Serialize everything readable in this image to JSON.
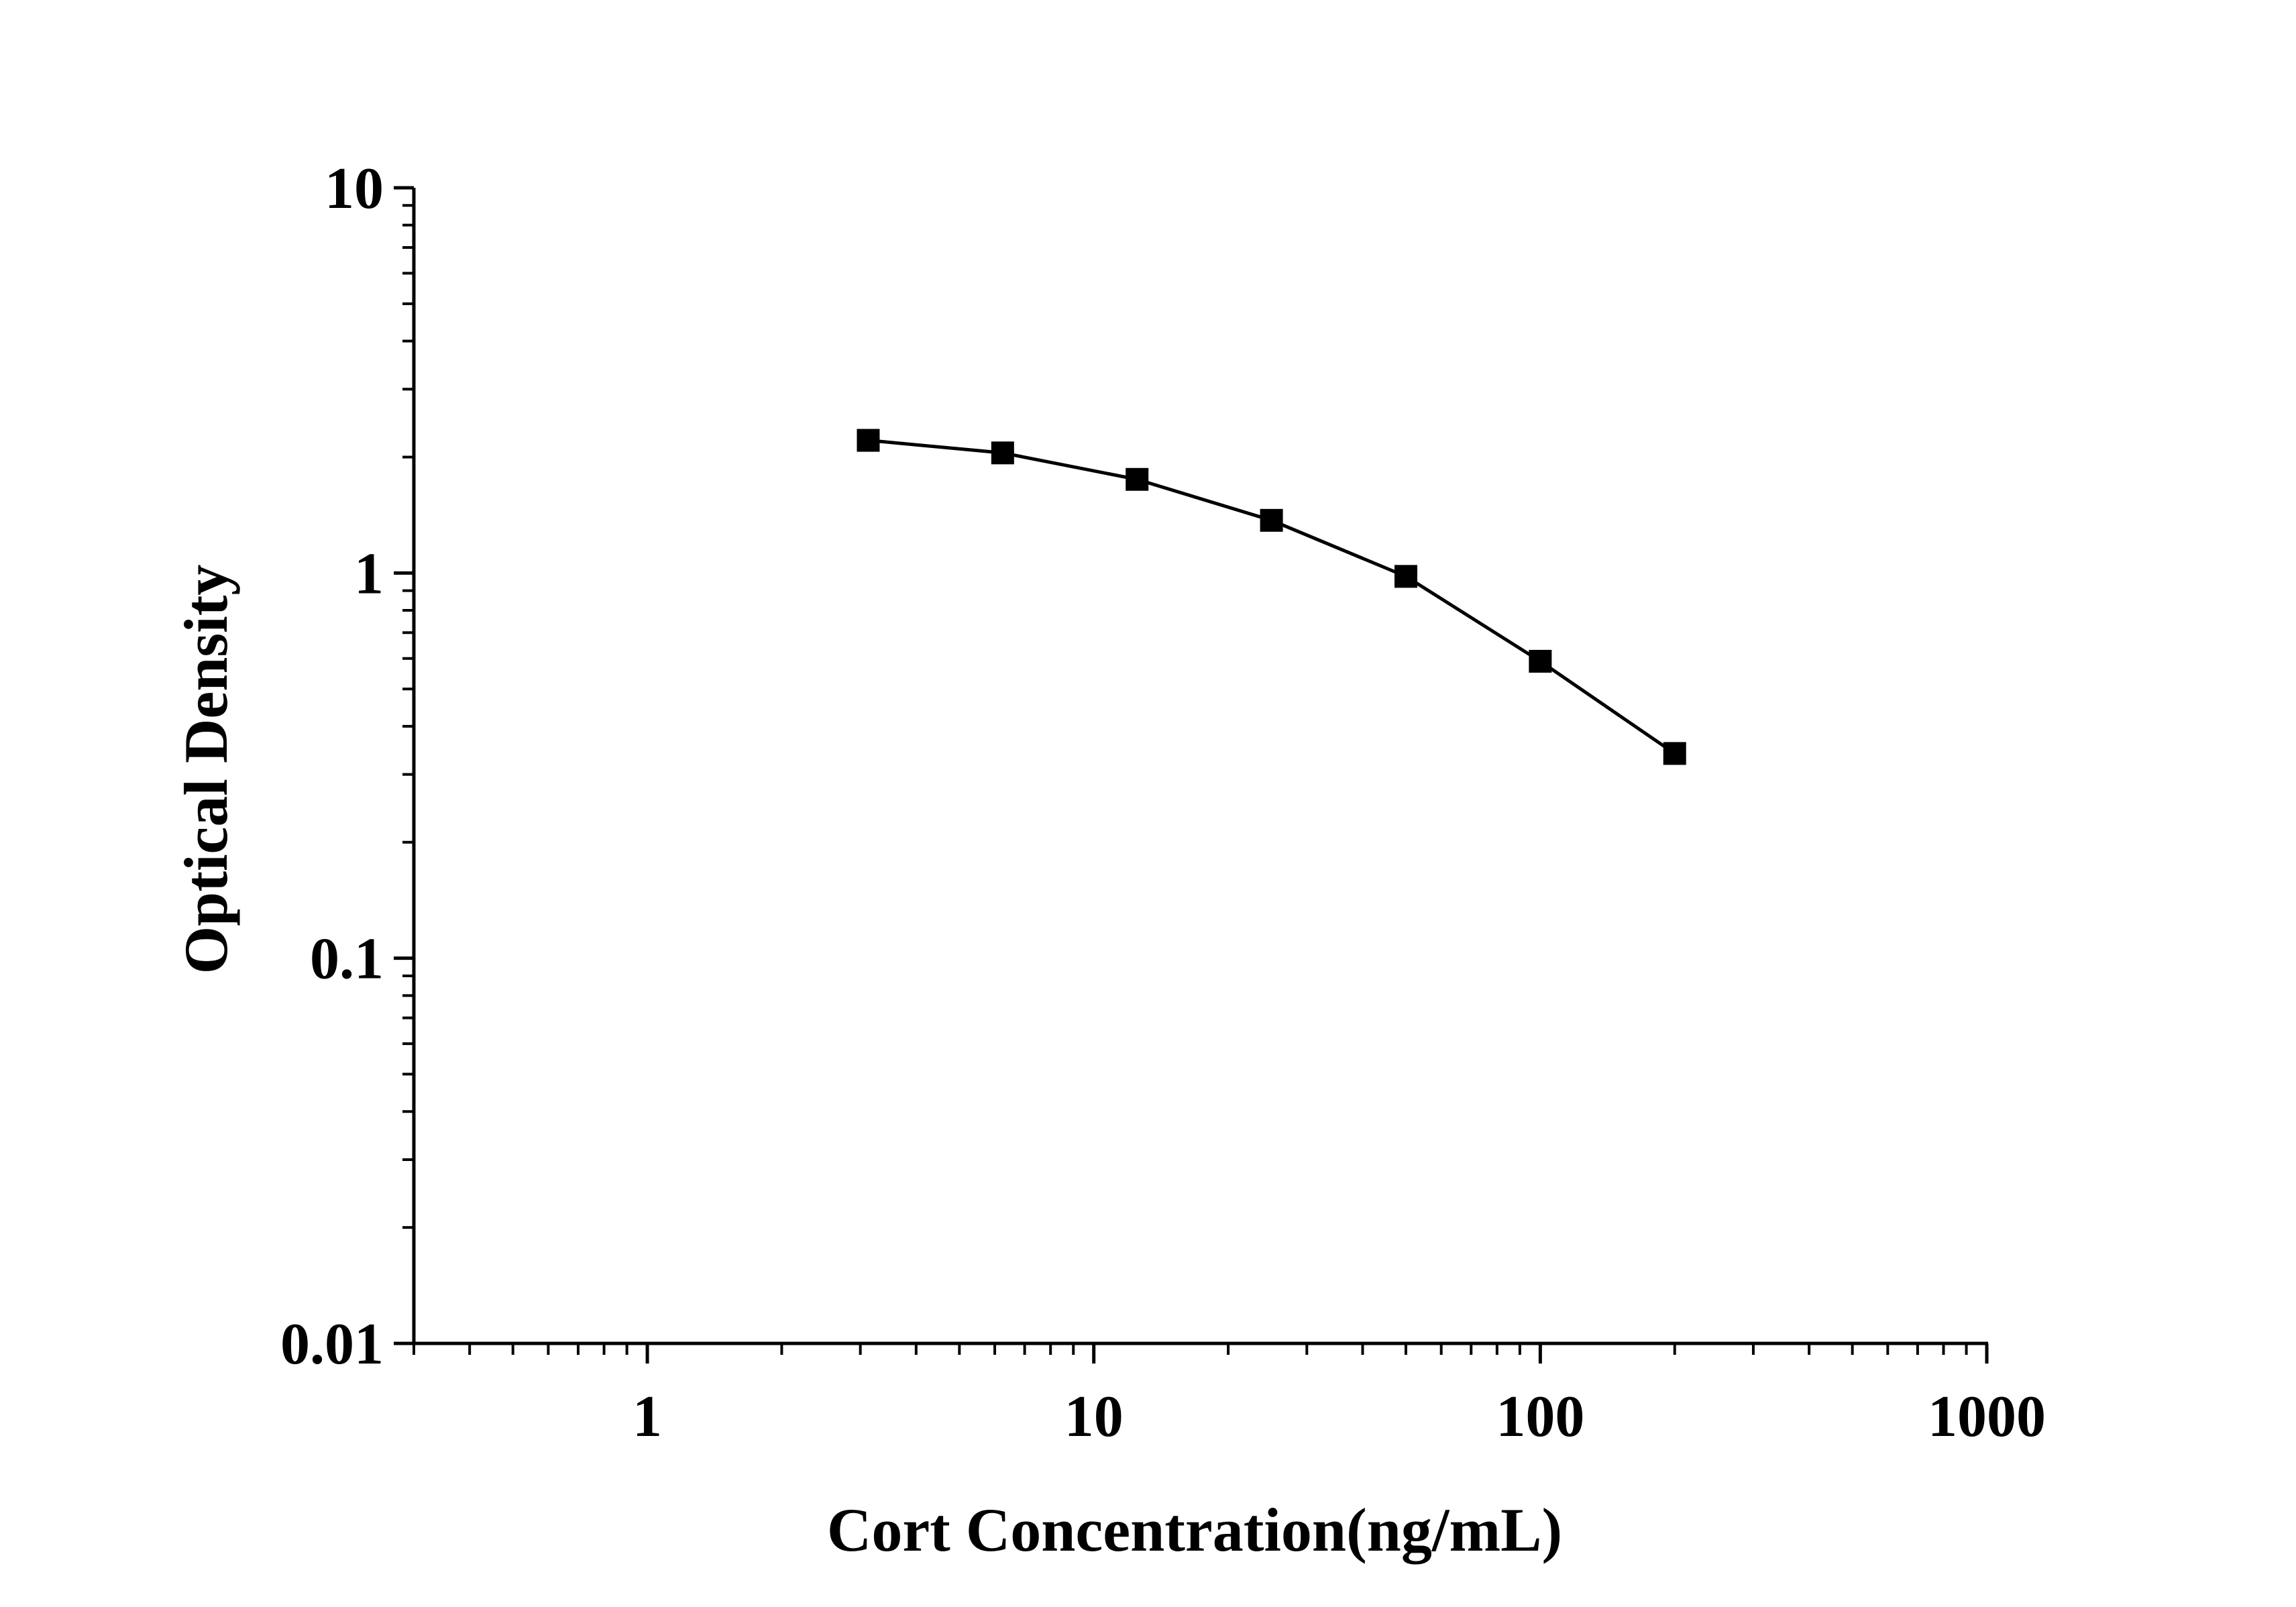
{
  "chart_data": {
    "type": "line",
    "title": "",
    "xlabel": "Cort Concentration(ng/mL)",
    "ylabel": "Optical Density",
    "xscale": "log",
    "yscale": "log",
    "xlim": [
      0.3,
      1000
    ],
    "ylim": [
      0.01,
      10
    ],
    "x_ticks": [
      {
        "value": 1,
        "label": "1"
      },
      {
        "value": 10,
        "label": "10"
      },
      {
        "value": 100,
        "label": "100"
      },
      {
        "value": 1000,
        "label": "1000"
      }
    ],
    "y_ticks": [
      {
        "value": 0.01,
        "label": "0.01"
      },
      {
        "value": 0.1,
        "label": "0.1"
      },
      {
        "value": 1,
        "label": "1"
      },
      {
        "value": 10,
        "label": "10"
      }
    ],
    "grid": false,
    "legend": "none",
    "series": [
      {
        "color": "#000000",
        "marker": "square",
        "x": [
          3.125,
          6.25,
          12.5,
          25,
          50,
          100,
          200
        ],
        "y": [
          2.21,
          2.05,
          1.75,
          1.37,
          0.98,
          0.59,
          0.34
        ]
      }
    ]
  }
}
